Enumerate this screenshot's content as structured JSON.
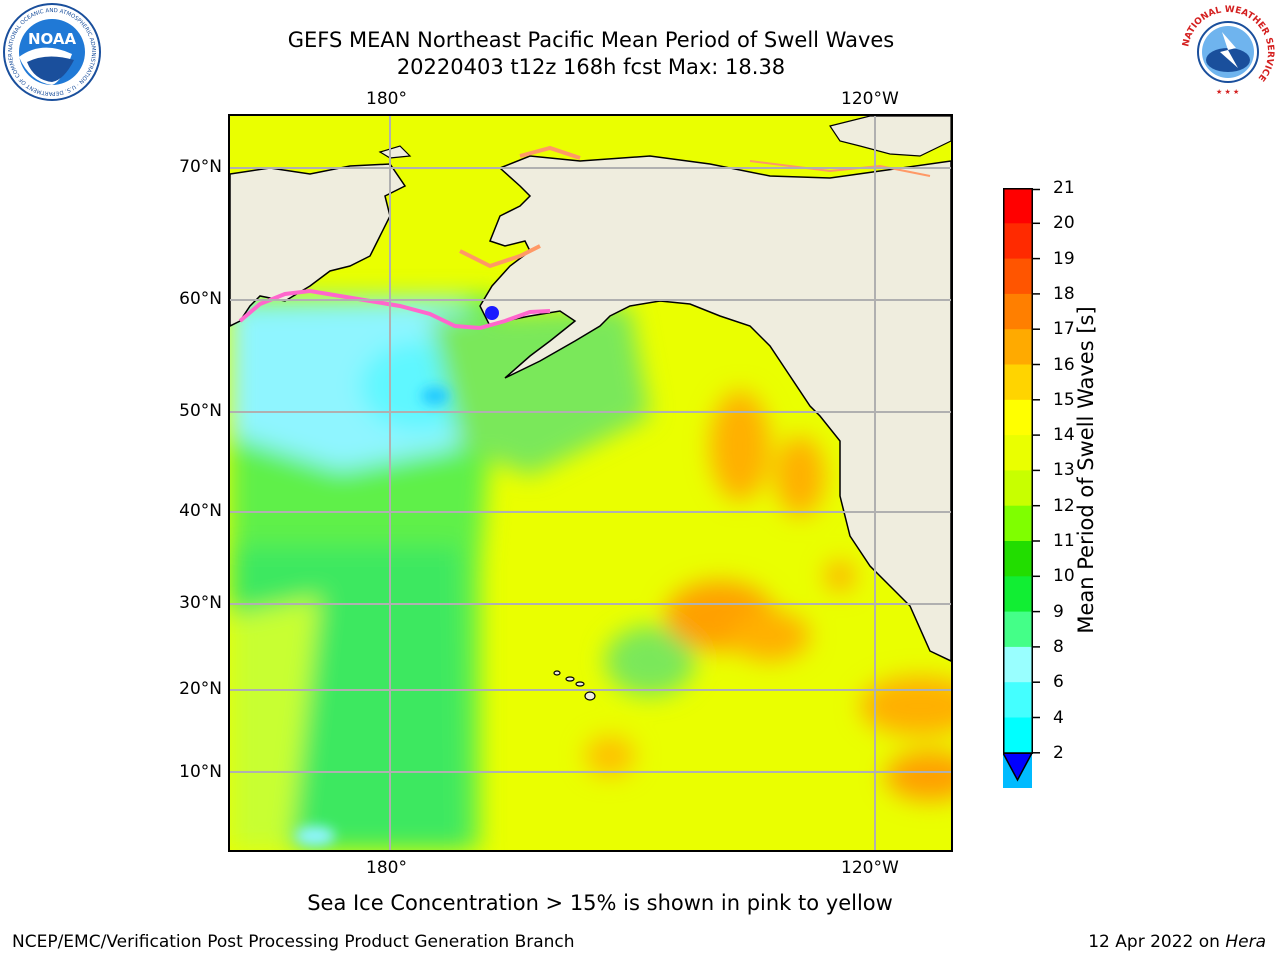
{
  "title": {
    "line1": "GEFS MEAN Northeast Pacific Mean Period of Swell Waves",
    "line2": "20220403 t12z 168h fcst   Max: 18.38"
  },
  "map": {
    "lon_labels_top": [
      "180°",
      "120°W"
    ],
    "lon_labels_bottom": [
      "180°",
      "120°W"
    ],
    "lat_labels": [
      "70°N",
      "60°N",
      "50°N",
      "40°N",
      "30°N",
      "20°N",
      "10°N"
    ],
    "land_color": "#efedde",
    "grid_color": "#b0b0b0"
  },
  "colorbar": {
    "label": "Mean Period of Swell Waves [s]",
    "ticks": [
      "21",
      "20",
      "19",
      "18",
      "17",
      "16",
      "15",
      "14",
      "13",
      "12",
      "11",
      "10",
      "9",
      "8",
      "6",
      "4",
      "2"
    ],
    "colors": [
      "#ff0000",
      "#ff2a00",
      "#ff5500",
      "#ff7f00",
      "#ffaa00",
      "#ffd400",
      "#ffff00",
      "#eaff00",
      "#c8ff00",
      "#7fff00",
      "#22dd00",
      "#11ee33",
      "#44ff88",
      "#99ffff",
      "#44ffff",
      "#00ffff",
      "#00bbff",
      "#0077ff"
    ],
    "extend_color": "#0000ff"
  },
  "annotation": "Sea Ice Concentration > 15% is shown in pink to yellow",
  "footer": {
    "left": "NCEP/EMC/Verification Post Processing Product Generation Branch",
    "date": "12 Apr 2022 on",
    "machine": "Hera"
  },
  "logos": {
    "noaa_text": "NOAA",
    "noaa_ring_text": "NATIONAL OCEANIC AND ATMOSPHERIC ADMINISTRATION · U.S. DEPARTMENT OF COMMERCE",
    "nws_ring_text": "NATIONAL WEATHER SERVICE"
  }
}
